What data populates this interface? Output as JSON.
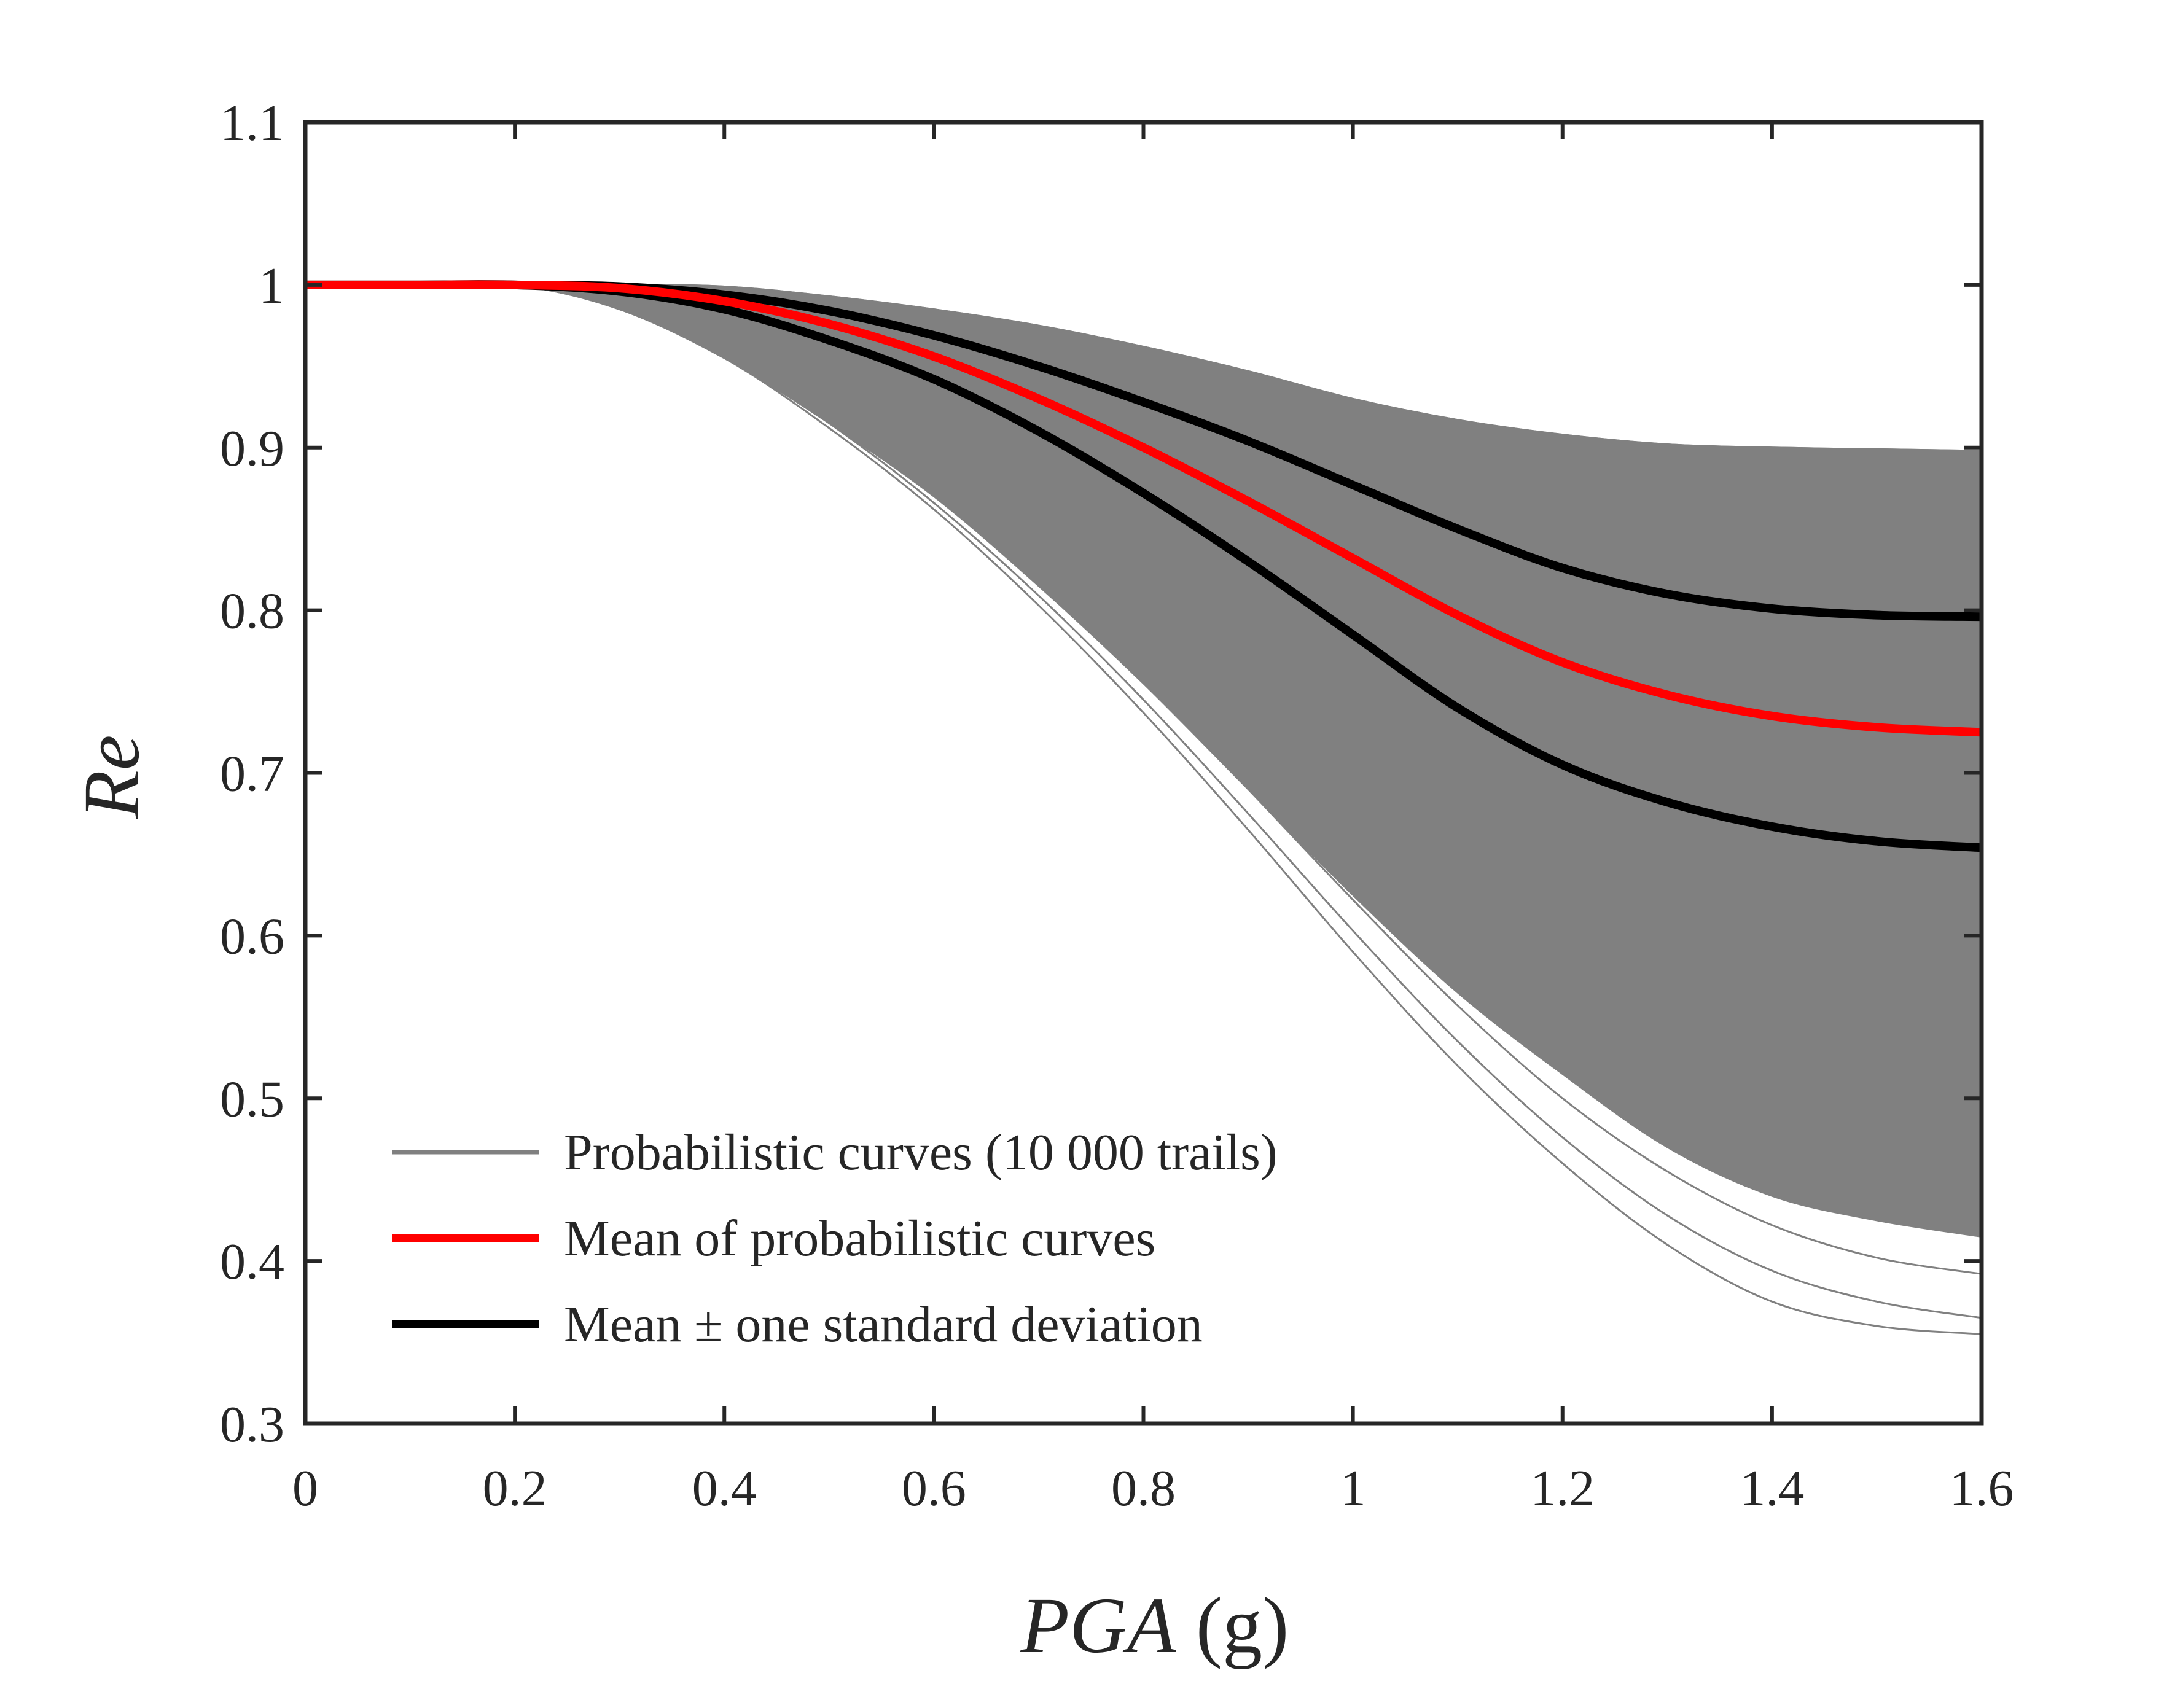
{
  "chart_data": {
    "type": "line",
    "title": "",
    "xlabel": "PGA",
    "xlabel_unit": " (g)",
    "ylabel": "Re",
    "xlim": [
      0,
      1.6
    ],
    "ylim": [
      0.3,
      1.1
    ],
    "x_ticks": [
      0,
      0.2,
      0.4,
      0.6,
      0.8,
      1,
      1.2,
      1.4,
      1.6
    ],
    "x_tick_labels": [
      "0",
      "0.2",
      "0.4",
      "0.6",
      "0.8",
      "1",
      "1.2",
      "1.4",
      "1.6"
    ],
    "y_ticks": [
      0.3,
      0.4,
      0.5,
      0.6,
      0.7,
      0.8,
      0.9,
      1,
      1.1
    ],
    "y_tick_labels": [
      "0.3",
      "0.4",
      "0.5",
      "0.6",
      "0.7",
      "0.8",
      "0.9",
      "1",
      "1.1"
    ],
    "grid": false,
    "legend_position": "bottom-left",
    "x": [
      0,
      0.1,
      0.2,
      0.3,
      0.4,
      0.5,
      0.6,
      0.7,
      0.8,
      0.9,
      1.0,
      1.1,
      1.2,
      1.3,
      1.4,
      1.5,
      1.6
    ],
    "band": {
      "upper": [
        1.0,
        1.0,
        1.0,
        1.0,
        0.999,
        0.993,
        0.985,
        0.975,
        0.962,
        0.947,
        0.93,
        0.917,
        0.908,
        0.902,
        0.9,
        0.899,
        0.898
      ],
      "lower": [
        1.0,
        1.0,
        1.0,
        0.985,
        0.955,
        0.915,
        0.87,
        0.815,
        0.755,
        0.69,
        0.625,
        0.565,
        0.515,
        0.47,
        0.44,
        0.425,
        0.415
      ]
    },
    "series": [
      {
        "name": "Probabilistic curves (10 000 trails)",
        "color": "#808080",
        "samples": [
          [
            1.0,
            1.0,
            1.0,
            0.985,
            0.955,
            0.912,
            0.862,
            0.803,
            0.737,
            0.665,
            0.59,
            0.52,
            0.46,
            0.41,
            0.375,
            0.36,
            0.355
          ],
          [
            1.0,
            1.0,
            1.0,
            0.986,
            0.957,
            0.915,
            0.866,
            0.809,
            0.745,
            0.675,
            0.603,
            0.535,
            0.476,
            0.428,
            0.394,
            0.375,
            0.365
          ],
          [
            1.0,
            1.0,
            1.0,
            0.987,
            0.96,
            0.92,
            0.873,
            0.818,
            0.757,
            0.69,
            0.622,
            0.557,
            0.5,
            0.455,
            0.422,
            0.402,
            0.392
          ],
          [
            1.0,
            1.0,
            1.0,
            0.988,
            0.962,
            0.924,
            0.879,
            0.827,
            0.768,
            0.705,
            0.64,
            0.578,
            0.525,
            0.482,
            0.452,
            0.434,
            0.425
          ],
          [
            1.0,
            1.0,
            1.0,
            0.99,
            0.968,
            0.935,
            0.895,
            0.848,
            0.795,
            0.738,
            0.68,
            0.625,
            0.578,
            0.542,
            0.516,
            0.502,
            0.495
          ],
          [
            1.0,
            1.0,
            1.0,
            0.998,
            0.99,
            0.98,
            0.965,
            0.945,
            0.92,
            0.893,
            0.866,
            0.843,
            0.825,
            0.81,
            0.8,
            0.795,
            0.793
          ],
          [
            1.0,
            1.0,
            1.0,
            1.0,
            0.997,
            0.99,
            0.981,
            0.97,
            0.956,
            0.94,
            0.922,
            0.908,
            0.898,
            0.892,
            0.888,
            0.886,
            0.885
          ],
          [
            1.0,
            1.0,
            1.0,
            1.0,
            0.999,
            0.993,
            0.985,
            0.975,
            0.962,
            0.947,
            0.93,
            0.917,
            0.908,
            0.902,
            0.9,
            0.899,
            0.898
          ]
        ]
      },
      {
        "name": "Mean of probabilistic curves",
        "color": "#ff0000",
        "values": [
          1.0,
          1.0,
          1.0,
          0.998,
          0.99,
          0.976,
          0.956,
          0.93,
          0.9,
          0.867,
          0.832,
          0.797,
          0.768,
          0.748,
          0.735,
          0.728,
          0.725
        ]
      },
      {
        "name": "Mean ± one standard deviation",
        "color": "#000000",
        "upper": [
          1.0,
          1.0,
          1.0,
          0.999,
          0.994,
          0.984,
          0.969,
          0.95,
          0.928,
          0.904,
          0.877,
          0.85,
          0.826,
          0.81,
          0.801,
          0.797,
          0.796
        ],
        "lower": [
          1.0,
          1.0,
          1.0,
          0.996,
          0.985,
          0.966,
          0.942,
          0.91,
          0.872,
          0.83,
          0.785,
          0.74,
          0.705,
          0.682,
          0.667,
          0.658,
          0.654
        ]
      }
    ]
  }
}
